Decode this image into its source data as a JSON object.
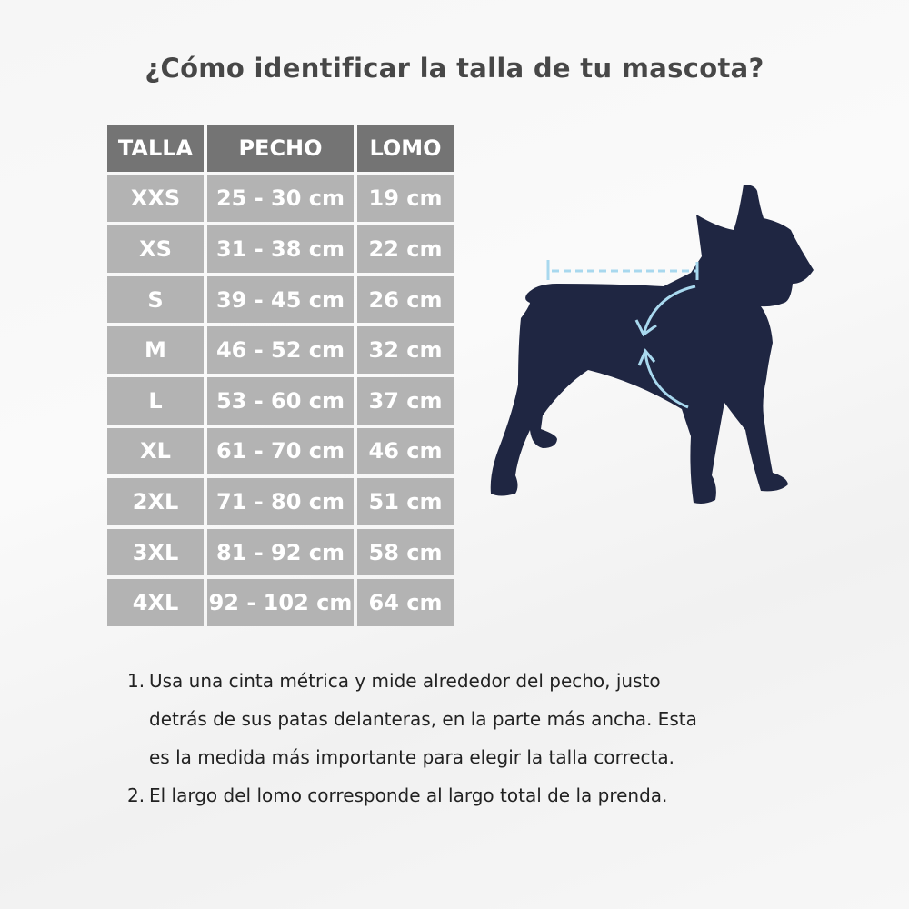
{
  "title": "¿Cómo identificar la talla de tu mascota?",
  "table": {
    "headers": [
      "TALLA",
      "PECHO",
      "LOMO"
    ],
    "rows": [
      [
        "XXS",
        "25 - 30 cm",
        "19 cm"
      ],
      [
        "XS",
        "31 - 38 cm",
        "22 cm"
      ],
      [
        "S",
        "39 - 45 cm",
        "26 cm"
      ],
      [
        "M",
        "46 - 52 cm",
        "32 cm"
      ],
      [
        "L",
        "53 - 60 cm",
        "37 cm"
      ],
      [
        "XL",
        "61 - 70 cm",
        "46 cm"
      ],
      [
        "2XL",
        "71 - 80 cm",
        "51 cm"
      ],
      [
        "3XL",
        "81 - 92 cm",
        "58 cm"
      ],
      [
        "4XL",
        "92 - 102 cm",
        "64 cm"
      ]
    ]
  },
  "notes": [
    {
      "num": "1.",
      "lines": [
        "Usa una cinta métrica y mide alrededor del pecho, justo",
        "detrás de sus patas delanteras, en la parte más ancha. Esta",
        "es la medida más importante para elegir la talla correcta."
      ]
    },
    {
      "num": "2.",
      "lines": [
        "El largo del lomo corresponde al largo total de la prenda."
      ]
    }
  ],
  "colors": {
    "header": "#747474",
    "cell": "#b3b3b3",
    "dog": "#1f2642",
    "measure": "#a8d8ee"
  },
  "illustration": "dog-silhouette-with-measure-lines"
}
